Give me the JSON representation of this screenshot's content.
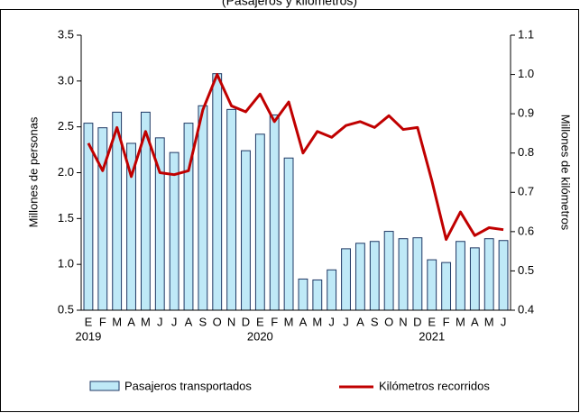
{
  "chart_data": {
    "type": "bar_line",
    "title": "(Pasajeros y kilómetros)",
    "categories": [
      "E",
      "F",
      "M",
      "A",
      "M",
      "J",
      "J",
      "A",
      "S",
      "O",
      "N",
      "D",
      "E",
      "F",
      "M",
      "A",
      "M",
      "J",
      "J",
      "A",
      "S",
      "O",
      "N",
      "D",
      "E",
      "F",
      "M",
      "A",
      "M",
      "J"
    ],
    "years": [
      "2019",
      "2020",
      "2021"
    ],
    "y_label": "Millones de personas",
    "y2_label": "Millones de kilómetros",
    "ylim": [
      0.5,
      3.5
    ],
    "yticks": [
      0.5,
      {
        "value": 1,
        "label": "1.0"
      },
      1.5,
      {
        "value": 2,
        "label": "2.0"
      },
      2.5,
      {
        "value": 3,
        "label": "3.0"
      },
      3.5
    ],
    "y2lim": [
      0.4,
      1.1
    ],
    "y2ticks": [
      0.4,
      0.5,
      0.6,
      0.7,
      0.8,
      0.9,
      {
        "value": 1,
        "label": "1.0"
      },
      1.1
    ],
    "series": [
      {
        "name": "Pasajeros transportados",
        "type": "bar",
        "color": "#bfe9f7",
        "values": [
          2.54,
          2.49,
          2.66,
          2.32,
          2.66,
          2.38,
          2.22,
          2.54,
          2.73,
          3.08,
          2.69,
          2.24,
          2.42,
          2.63,
          2.16,
          0.84,
          0.83,
          0.94,
          1.17,
          1.23,
          1.25,
          1.36,
          1.28,
          1.29,
          1.05,
          1.02,
          1.25,
          1.18,
          1.28,
          1.26
        ]
      },
      {
        "name": "Kilómetros recorridos",
        "type": "line",
        "axis": "y2",
        "color": "#c00000",
        "values": [
          0.825,
          0.755,
          0.865,
          0.74,
          0.855,
          0.75,
          0.745,
          0.755,
          0.91,
          1.0,
          0.92,
          0.905,
          0.95,
          0.88,
          0.93,
          0.8,
          0.855,
          0.84,
          0.87,
          0.88,
          0.865,
          0.895,
          0.86,
          0.865,
          0.73,
          0.58,
          0.65,
          0.59,
          0.61,
          0.605
        ]
      }
    ]
  }
}
